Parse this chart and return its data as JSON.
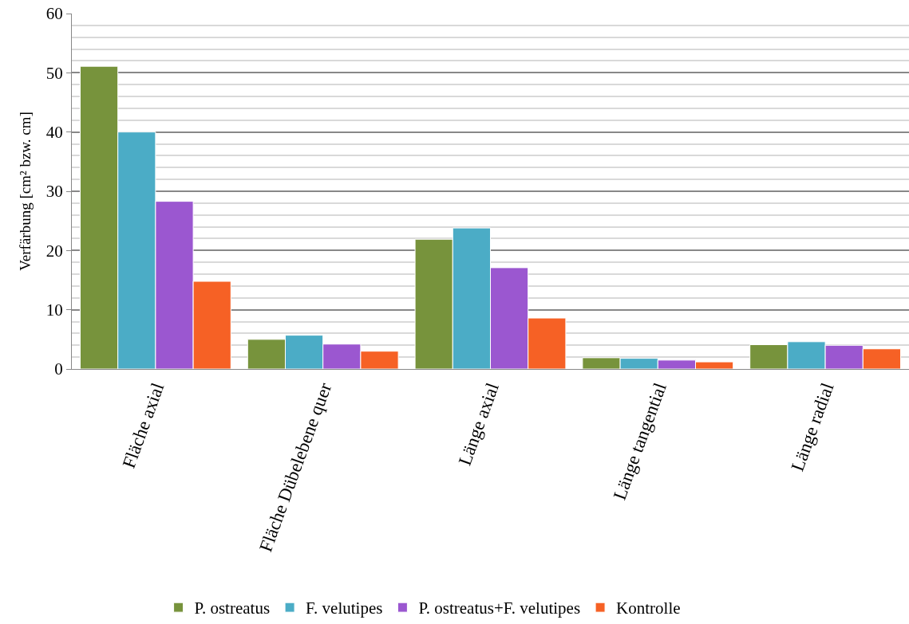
{
  "chart_data": {
    "type": "bar",
    "ylabel": "Verfärbung [cm² bzw. cm]",
    "categories": [
      "Fläche axial",
      "Fläche Dübelebene quer",
      "Länge axial",
      "Länge tangential",
      "Länge radial"
    ],
    "series": [
      {
        "name": "P. ostreatus",
        "color": "#77933c",
        "values": [
          51.1,
          5.0,
          21.9,
          1.9,
          4.1
        ]
      },
      {
        "name": "F. velutipes",
        "color": "#4bacc6",
        "values": [
          40.0,
          5.7,
          23.8,
          1.8,
          4.6
        ]
      },
      {
        "name": "P. ostreatus+F. velutipes",
        "color": "#9b57d0",
        "values": [
          28.3,
          4.2,
          17.1,
          1.5,
          4.0
        ]
      },
      {
        "name": "Kontrolle",
        "color": "#f66125",
        "values": [
          14.8,
          3.0,
          8.6,
          1.2,
          3.4
        ]
      }
    ],
    "ylim": [
      0,
      60
    ],
    "yticks": [
      0,
      10,
      20,
      30,
      40,
      50,
      60
    ],
    "grid": "y",
    "legend": "bottom"
  }
}
